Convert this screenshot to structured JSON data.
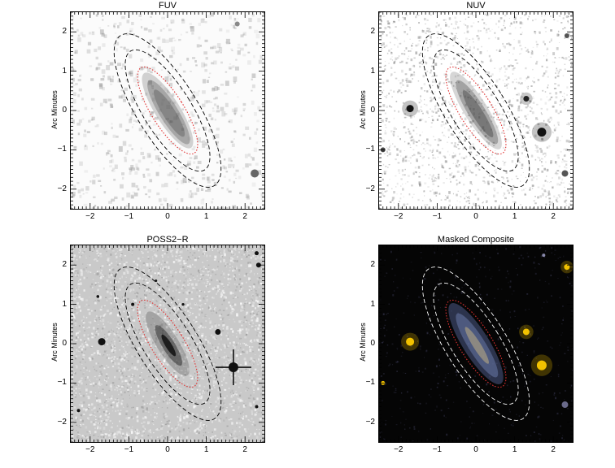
{
  "panels": [
    {
      "title": "FUV",
      "ylabel": "Arc Minutes",
      "style": "uv-sparse"
    },
    {
      "title": "NUV",
      "ylabel": "Arc Minutes",
      "style": "uv-dense"
    },
    {
      "title": "POSS2−R",
      "ylabel": "Arc Minutes",
      "style": "optical"
    },
    {
      "title": "Masked Composite",
      "ylabel": "Arc Minutes",
      "style": "composite"
    }
  ],
  "axis": {
    "xticks": [
      "−2",
      "−1",
      "0",
      "1",
      "2"
    ],
    "yticks": [
      "2",
      "1",
      "0",
      "−1",
      "−2"
    ],
    "xlim": [
      -2.5,
      2.5
    ],
    "ylim": [
      -2.5,
      2.5
    ]
  },
  "colors": {
    "inner_ellipse": "#e03030",
    "outer_ellipse_dark": "#000000",
    "outer_ellipse_light": "#ffffff",
    "composite_bg": "#050505",
    "star_yellow": "#f2c200"
  }
}
